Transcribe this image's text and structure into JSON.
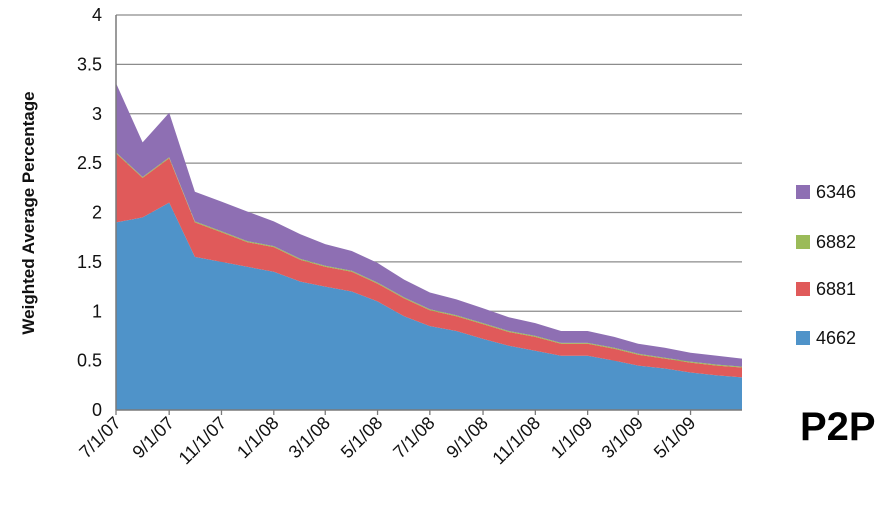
{
  "chart_data": {
    "type": "area",
    "stacked": true,
    "ylabel": "Weighted Average Percentage",
    "xlabel": "",
    "ylim": [
      0,
      4
    ],
    "y_ticks": [
      "0",
      "0.5",
      "1",
      "1.5",
      "2",
      "2.5",
      "3",
      "3.5",
      "4"
    ],
    "x_ticks": [
      "7/1/07",
      "9/1/07",
      "11/1/07",
      "1/1/08",
      "3/1/08",
      "5/1/08",
      "7/1/08",
      "9/1/08",
      "11/1/08",
      "1/1/09",
      "3/1/09",
      "5/1/09"
    ],
    "x_range": [
      "2007-07-01",
      "2009-06-30"
    ],
    "grid": true,
    "legend_position": "right",
    "x": [
      "2007-07-01",
      "2007-08-01",
      "2007-09-01",
      "2007-10-01",
      "2007-11-01",
      "2007-12-01",
      "2008-01-01",
      "2008-02-01",
      "2008-03-01",
      "2008-04-01",
      "2008-05-01",
      "2008-06-01",
      "2008-07-01",
      "2008-08-01",
      "2008-09-01",
      "2008-10-01",
      "2008-11-01",
      "2008-12-01",
      "2009-01-01",
      "2009-02-01",
      "2009-03-01",
      "2009-04-01",
      "2009-05-01",
      "2009-06-01",
      "2009-06-30"
    ],
    "series": [
      {
        "name": "4662",
        "color": "#4f93c9",
        "values": [
          1.9,
          1.95,
          2.1,
          1.55,
          1.5,
          1.45,
          1.4,
          1.3,
          1.25,
          1.2,
          1.1,
          0.95,
          0.85,
          0.8,
          0.72,
          0.65,
          0.6,
          0.55,
          0.55,
          0.5,
          0.45,
          0.42,
          0.38,
          0.35,
          0.33
        ]
      },
      {
        "name": "6881",
        "color": "#e05a5a",
        "values": [
          0.7,
          0.4,
          0.45,
          0.35,
          0.3,
          0.25,
          0.25,
          0.22,
          0.2,
          0.2,
          0.18,
          0.18,
          0.16,
          0.15,
          0.15,
          0.14,
          0.14,
          0.12,
          0.12,
          0.12,
          0.11,
          0.1,
          0.1,
          0.1,
          0.1
        ]
      },
      {
        "name": "6882",
        "color": "#9bbb59",
        "values": [
          0.01,
          0.01,
          0.01,
          0.01,
          0.01,
          0.01,
          0.01,
          0.01,
          0.01,
          0.01,
          0.01,
          0.01,
          0.01,
          0.01,
          0.01,
          0.01,
          0.01,
          0.01,
          0.01,
          0.01,
          0.01,
          0.01,
          0.01,
          0.01,
          0.01
        ]
      },
      {
        "name": "6346",
        "color": "#8e6fb3",
        "values": [
          0.7,
          0.35,
          0.45,
          0.3,
          0.3,
          0.3,
          0.25,
          0.25,
          0.22,
          0.2,
          0.2,
          0.18,
          0.17,
          0.16,
          0.15,
          0.14,
          0.13,
          0.12,
          0.12,
          0.11,
          0.1,
          0.1,
          0.09,
          0.09,
          0.08
        ]
      }
    ]
  },
  "legend": [
    {
      "label": "6346",
      "color": "#8e6fb3"
    },
    {
      "label": "6882",
      "color": "#9bbb59"
    },
    {
      "label": "6881",
      "color": "#e05a5a"
    },
    {
      "label": "4662",
      "color": "#4f93c9"
    }
  ],
  "caption": "P2P"
}
